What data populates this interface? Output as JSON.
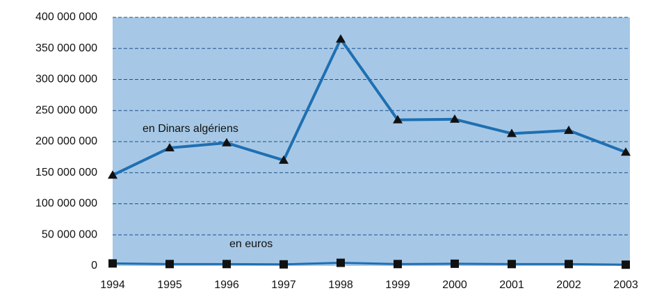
{
  "chart_data": {
    "type": "line",
    "categories": [
      "1994",
      "1995",
      "1996",
      "1997",
      "1998",
      "1999",
      "2000",
      "2001",
      "2002",
      "2003"
    ],
    "series": [
      {
        "name": "en Dinars algériens",
        "color": "#1f6fb2",
        "marker": "triangle",
        "values": [
          146000000,
          190000000,
          198000000,
          170000000,
          365000000,
          235000000,
          236000000,
          213000000,
          218000000,
          183000000
        ]
      },
      {
        "name": "en euros",
        "color": "#1f6fb2",
        "marker": "square",
        "values": [
          4000000,
          3000000,
          3000000,
          2500000,
          5000000,
          3000000,
          3500000,
          3000000,
          3000000,
          2000000
        ]
      }
    ],
    "ylim": [
      0,
      400000000
    ],
    "yticks": [
      {
        "value": 0,
        "label": "0"
      },
      {
        "value": 50000000,
        "label": "50 000 000"
      },
      {
        "value": 100000000,
        "label": "100 000 000"
      },
      {
        "value": 150000000,
        "label": "150 000 000"
      },
      {
        "value": 200000000,
        "label": "200 000 000"
      },
      {
        "value": 250000000,
        "label": "250 000 000"
      },
      {
        "value": 300000000,
        "label": "300 000 000"
      },
      {
        "value": 350000000,
        "label": "350 000 000"
      },
      {
        "value": 400000000,
        "label": "400 000 000"
      }
    ],
    "grid": true,
    "plot_background": "#a6c8e6"
  }
}
